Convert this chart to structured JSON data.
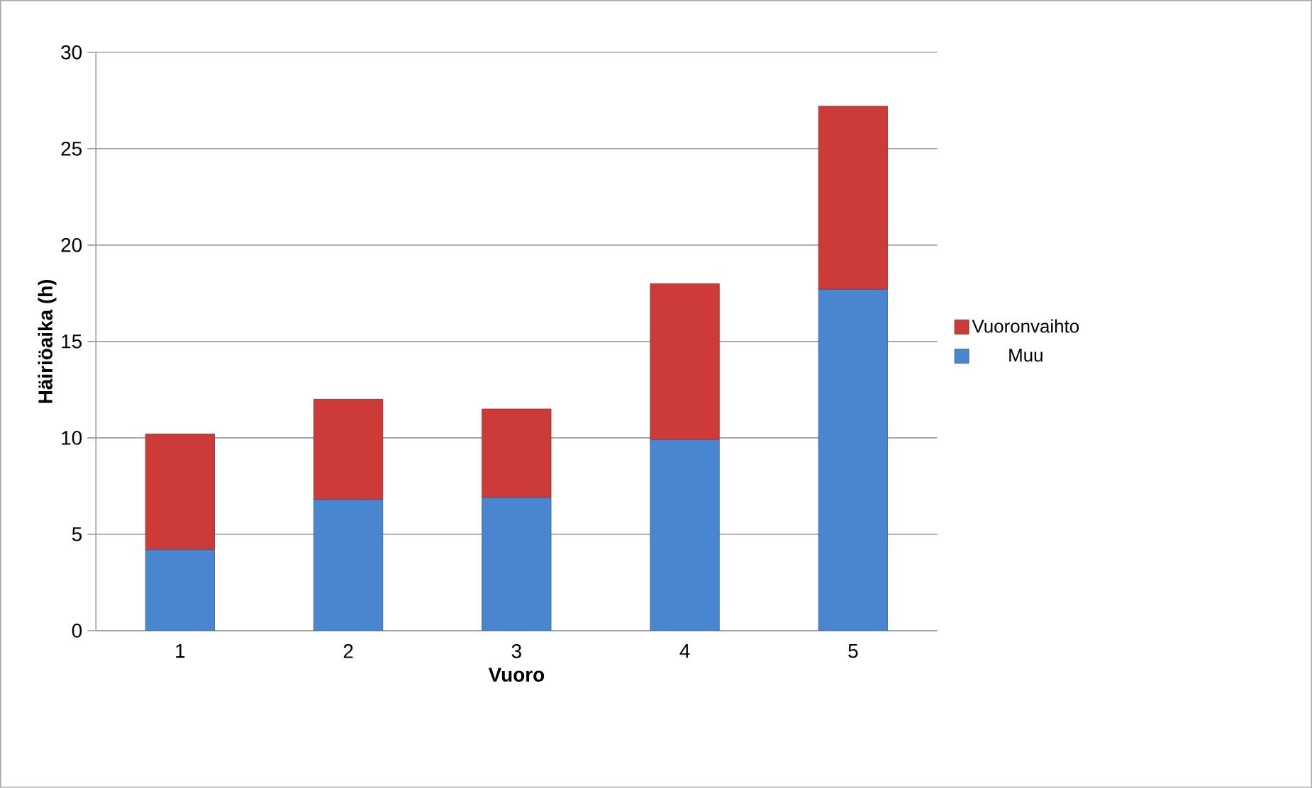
{
  "chart_data": {
    "type": "bar",
    "stacked": true,
    "xlabel": "Vuoro",
    "ylabel": "Häiriöaika (h)",
    "categories": [
      "1",
      "2",
      "3",
      "4",
      "5"
    ],
    "series": [
      {
        "name": "Muu",
        "color": "#4a86d0",
        "values": [
          4.2,
          6.8,
          6.9,
          9.9,
          17.7
        ]
      },
      {
        "name": "Vuoronvaihto",
        "color": "#cc3b37",
        "values": [
          6.0,
          5.2,
          4.6,
          8.1,
          9.5
        ]
      }
    ],
    "ylim": [
      0,
      30
    ],
    "yticks": [
      0,
      5,
      10,
      15,
      20,
      25,
      30
    ],
    "grid": "y",
    "legend": "right"
  }
}
